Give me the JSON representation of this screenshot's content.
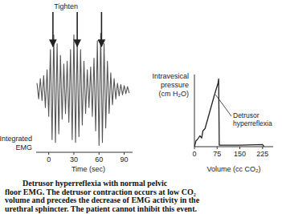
{
  "chart_data": [
    {
      "type": "line",
      "x_label": "Time (sec)",
      "y_label": "Integrated EMG",
      "x": [
        -14,
        -12,
        -10,
        -8,
        -6,
        -4,
        -2,
        0,
        2,
        4,
        6,
        8,
        10,
        12,
        14,
        16,
        18,
        20,
        22,
        24,
        26,
        28,
        30,
        32,
        34,
        36,
        38,
        40,
        42,
        44,
        46,
        48,
        50,
        52,
        54,
        56,
        58,
        60,
        62,
        64,
        66,
        68,
        70,
        72,
        74,
        76,
        78,
        80,
        82,
        84,
        86,
        88,
        90,
        92,
        94,
        96
      ],
      "values": [
        0.12,
        -0.15,
        0.2,
        -0.18,
        0.25,
        -0.3,
        0.35,
        -0.45,
        0.7,
        -0.85,
        0.95,
        -0.9,
        0.8,
        -0.75,
        0.6,
        -0.5,
        0.45,
        -0.4,
        0.5,
        -0.55,
        0.7,
        -0.85,
        0.95,
        -0.9,
        0.85,
        -0.8,
        0.7,
        -0.6,
        0.5,
        -0.4,
        0.35,
        -0.3,
        0.4,
        -0.45,
        0.55,
        -0.7,
        0.85,
        -0.95,
        0.98,
        -0.9,
        0.8,
        -0.65,
        0.5,
        -0.4,
        0.3,
        -0.25,
        0.2,
        -0.15,
        0.12,
        -0.1,
        0.1,
        -0.08,
        0.08,
        -0.06,
        0.06,
        -0.05
      ],
      "color": "#555555",
      "xlim": [
        -15,
        100
      ],
      "xticks": [
        0,
        30,
        60,
        90
      ],
      "ylim": [
        -1,
        1
      ],
      "tick_labels": "x",
      "annotation": {
        "text": "Tighten",
        "x": [
          5,
          34,
          63
        ]
      }
    },
    {
      "type": "line",
      "x_label": "Volume (cc CO₂)",
      "y_label": "Intravesical pressure (cm H₂O)",
      "x": [
        0,
        5,
        10,
        18,
        24,
        28,
        35,
        45,
        55,
        65,
        72,
        78,
        80,
        82,
        150,
        225,
        230
      ],
      "values": [
        0,
        8,
        10,
        15,
        12,
        22,
        25,
        40,
        55,
        70,
        80,
        88,
        94,
        2,
        2,
        3,
        0
      ],
      "color": "#222222",
      "xlim": [
        0,
        260
      ],
      "xticks": [
        0,
        75,
        150,
        225
      ],
      "ylim": [
        0,
        100
      ],
      "tick_labels": "x",
      "annotation": {
        "text": "Detrusor hyperreflexia",
        "x": 70,
        "y": 72
      }
    }
  ],
  "caption": [
    "Detrusor hyperreflexia with normal pelvic",
    "floor EMG. The detrusor contraction occurs at low CO₂",
    "volume and precedes the decrease of EMG activity in the",
    "urethral sphincter. The patient cannot inhibit this event."
  ]
}
